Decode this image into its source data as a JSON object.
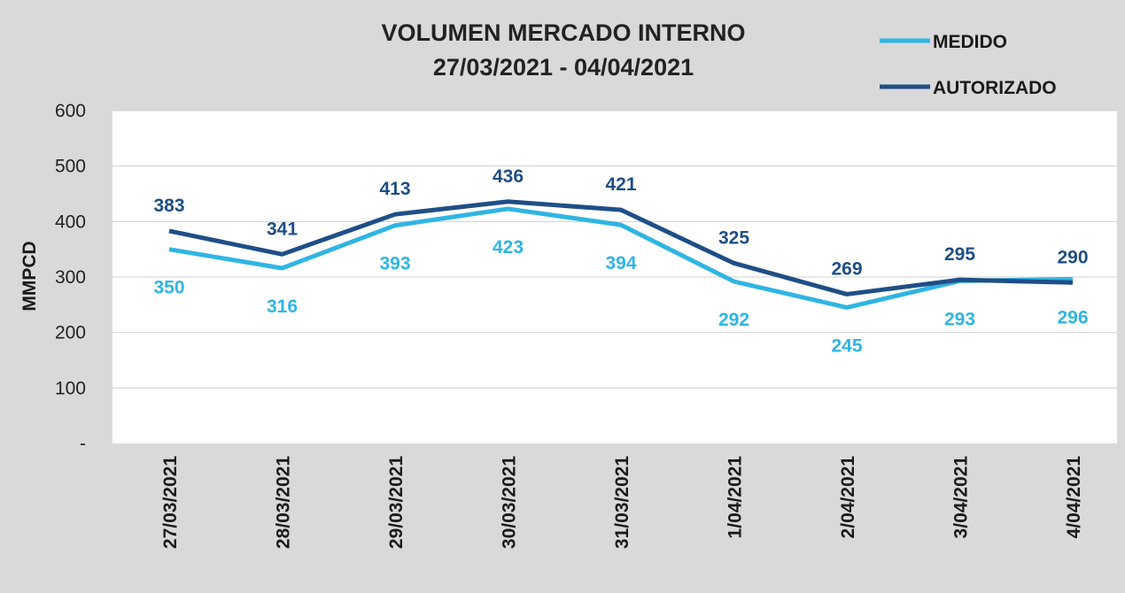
{
  "chart_data": {
    "type": "line",
    "title": [
      "VOLUMEN MERCADO INTERNO",
      "27/03/2021 - 04/04/2021"
    ],
    "ylabel": "MMPCD",
    "ylim": [
      0,
      600
    ],
    "y_ticks": [
      "-",
      "100",
      "200",
      "300",
      "400",
      "500",
      "600"
    ],
    "grid": true,
    "legend_position": "top-right",
    "categories": [
      "27/03/2021",
      "28/03/2021",
      "29/03/2021",
      "30/03/2021",
      "31/03/2021",
      "1/04/2021",
      "2/04/2021",
      "3/04/2021",
      "4/04/2021"
    ],
    "series": [
      {
        "name": "MEDIDO",
        "color": "#2fb5e3",
        "values": [
          350,
          316,
          393,
          423,
          394,
          292,
          245,
          293,
          296
        ]
      },
      {
        "name": "AUTORIZADO",
        "color": "#1f4e86",
        "values": [
          383,
          341,
          413,
          436,
          421,
          325,
          269,
          295,
          290
        ]
      }
    ]
  }
}
